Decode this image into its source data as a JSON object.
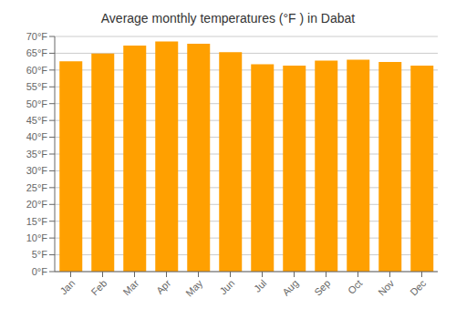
{
  "chart_data": {
    "type": "bar",
    "title": "Average monthly temperatures (°F ) in Dabat",
    "categories": [
      "Jan",
      "Feb",
      "Mar",
      "Apr",
      "May",
      "Jun",
      "Jul",
      "Aug",
      "Sep",
      "Oct",
      "Nov",
      "Dec"
    ],
    "values": [
      62.6,
      64.9,
      67.3,
      68.5,
      67.8,
      65.3,
      61.7,
      61.3,
      62.8,
      63.1,
      62.4,
      61.3
    ],
    "color": "#FFA000",
    "ylim": [
      0,
      70
    ],
    "yticks": [
      {
        "value": 0,
        "label": "0°F"
      },
      {
        "value": 5,
        "label": "5°F"
      },
      {
        "value": 10,
        "label": "10°F"
      },
      {
        "value": 15,
        "label": "15°F"
      },
      {
        "value": 20,
        "label": "20°F"
      },
      {
        "value": 25,
        "label": "25°F"
      },
      {
        "value": 30,
        "label": "30°F"
      },
      {
        "value": 35,
        "label": "35°F"
      },
      {
        "value": 40,
        "label": "40°F"
      },
      {
        "value": 45,
        "label": "45°F"
      },
      {
        "value": 50,
        "label": "50°F"
      },
      {
        "value": 55,
        "label": "55°F"
      },
      {
        "value": 60,
        "label": "60°F"
      },
      {
        "value": 65,
        "label": "65°F"
      },
      {
        "value": 70,
        "label": "70°F"
      }
    ],
    "grid": true
  }
}
